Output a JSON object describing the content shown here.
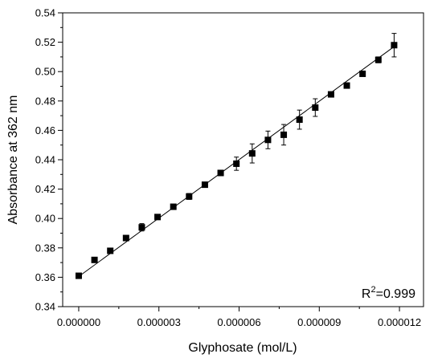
{
  "chart_data": {
    "type": "scatter",
    "title": "",
    "xlabel": "Glyphosate (mol/L)",
    "ylabel": "Absorbance at 362 nm",
    "xlim": [
      -6e-07,
      1.29e-05
    ],
    "ylim": [
      0.34,
      0.54
    ],
    "x_ticks": [
      0.0,
      3e-06,
      6e-06,
      9e-06,
      1.2e-05
    ],
    "x_tick_labels": [
      "0.000000",
      "0.000003",
      "0.000006",
      "0.000009",
      "0.000012"
    ],
    "y_ticks": [
      0.34,
      0.36,
      0.38,
      0.4,
      0.42,
      0.44,
      0.46,
      0.48,
      0.5,
      0.52,
      0.54
    ],
    "y_tick_labels": [
      "0.34",
      "0.36",
      "0.38",
      "0.40",
      "0.42",
      "0.44",
      "0.46",
      "0.48",
      "0.50",
      "0.52",
      "0.54"
    ],
    "grid": false,
    "legend": "none",
    "marker_color": "#000000",
    "line_color": "#000000",
    "series": [
      {
        "x": [
          0.0,
          5.9e-07,
          1.18e-06,
          1.77e-06,
          2.36e-06,
          2.95e-06,
          3.54e-06,
          4.13e-06,
          4.72e-06,
          5.31e-06,
          5.9e-06,
          6.49e-06,
          7.08e-06,
          7.67e-06,
          8.26e-06,
          8.85e-06,
          9.44e-06,
          1.003e-05,
          1.062e-05,
          1.121e-05,
          1.18e-05
        ],
        "y": [
          0.361,
          0.3718,
          0.378,
          0.3867,
          0.394,
          0.401,
          0.408,
          0.415,
          0.423,
          0.431,
          0.4373,
          0.4443,
          0.4535,
          0.457,
          0.4673,
          0.4755,
          0.4845,
          0.4905,
          0.4985,
          0.508,
          0.518
        ],
        "err": [
          0.001,
          0.001,
          0.001,
          0.001,
          0.0025,
          0.001,
          0.001,
          0.002,
          0.001,
          0.001,
          0.0045,
          0.0065,
          0.006,
          0.007,
          0.0065,
          0.006,
          0.001,
          0.001,
          0.001,
          0.002,
          0.008
        ]
      }
    ],
    "fit_line": {
      "x": [
        0.0,
        1.18e-05
      ],
      "y": [
        0.3605,
        0.517
      ]
    },
    "annotation": {
      "base": "R",
      "sup": "2",
      "rest": "=0.999"
    }
  }
}
